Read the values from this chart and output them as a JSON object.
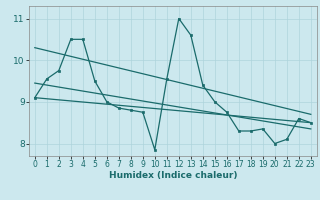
{
  "title": "",
  "xlabel": "Humidex (Indice chaleur)",
  "bg_color": "#cce8ee",
  "grid_color": "#aed4dc",
  "line_color": "#1a6b6b",
  "xlim": [
    -0.5,
    23.5
  ],
  "ylim": [
    7.7,
    11.3
  ],
  "yticks": [
    8,
    9,
    10,
    11
  ],
  "xticks": [
    0,
    1,
    2,
    3,
    4,
    5,
    6,
    7,
    8,
    9,
    10,
    11,
    12,
    13,
    14,
    15,
    16,
    17,
    18,
    19,
    20,
    21,
    22,
    23
  ],
  "zigzag_x": [
    0,
    1,
    2,
    3,
    4,
    5,
    6,
    7,
    8,
    9,
    10,
    11,
    12,
    13,
    14,
    15,
    16,
    17,
    18,
    19,
    20,
    21,
    22,
    23
  ],
  "zigzag_y": [
    9.1,
    9.55,
    9.75,
    10.5,
    10.5,
    9.5,
    9.0,
    8.85,
    8.8,
    8.75,
    7.85,
    9.55,
    11.0,
    10.6,
    9.4,
    9.0,
    8.75,
    8.3,
    8.3,
    8.35,
    8.0,
    8.1,
    8.6,
    8.5
  ],
  "trend1_x": [
    0,
    23
  ],
  "trend1_y": [
    10.3,
    8.7
  ],
  "trend2_x": [
    0,
    23
  ],
  "trend2_y": [
    9.45,
    8.35
  ],
  "trend3_x": [
    0,
    23
  ],
  "trend3_y": [
    9.1,
    8.5
  ]
}
